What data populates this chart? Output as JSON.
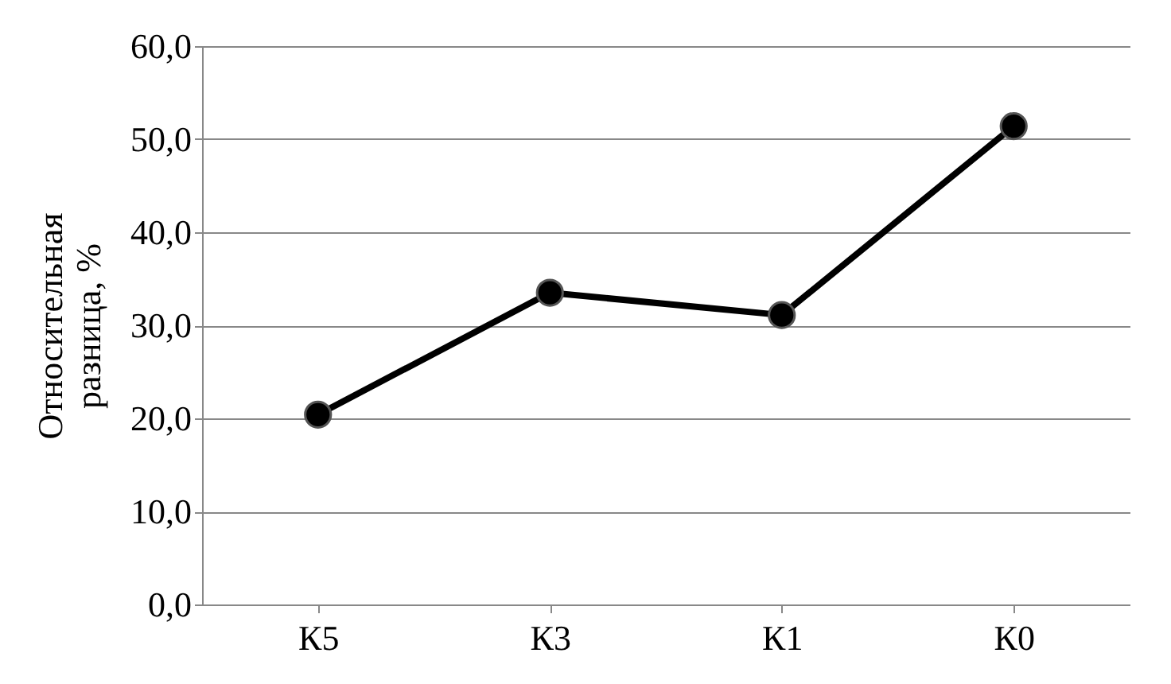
{
  "chart_data": {
    "type": "line",
    "ylabel": "Относительная разница, %",
    "categories": [
      "К5",
      "К3",
      "К1",
      "К0"
    ],
    "series": [
      {
        "color": "#000000",
        "values": [
          20.4,
          33.5,
          31.1,
          51.4
        ]
      }
    ],
    "ylim": [
      0,
      60
    ],
    "yticks": [
      {
        "value": 0,
        "label": "0,0"
      },
      {
        "value": 10,
        "label": "10,0"
      },
      {
        "value": 20,
        "label": "20,0"
      },
      {
        "value": 30,
        "label": "30,0"
      },
      {
        "value": 40,
        "label": "40,0"
      },
      {
        "value": 50,
        "label": "50,0"
      },
      {
        "value": 60,
        "label": "60,0"
      }
    ],
    "grid": "y",
    "marker": "circle",
    "line_style": "solid"
  }
}
